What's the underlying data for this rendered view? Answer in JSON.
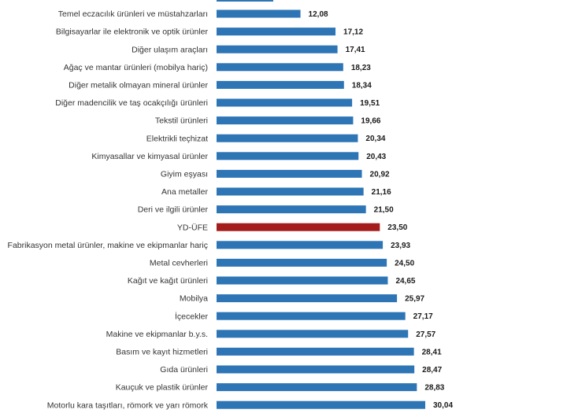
{
  "colors": {
    "bar": "#2e75b6",
    "highlight": "#a51c1c",
    "text": "#333333",
    "value_text": "#1a1a1a"
  },
  "chart_data": {
    "type": "bar",
    "orientation": "horizontal",
    "title": "",
    "xlabel": "",
    "ylabel": "",
    "grid": false,
    "highlight_category": "YD-ÜFE",
    "categories": [
      "Temel eczacılık ürünleri ve müstahzarları",
      "Bilgisayarlar ile elektronik ve optik ürünler",
      "Diğer ulaşım araçları",
      "Ağaç ve mantar ürünleri (mobilya hariç)",
      "Diğer metalik olmayan mineral ürünler",
      "Diğer madencilik ve taş ocakçılığı ürünleri",
      "Tekstil ürünleri",
      "Elektrikli teçhizat",
      "Kimyasallar ve kimyasal ürünler",
      "Giyim eşyası",
      "Ana metaller",
      "Deri ve ilgili ürünler",
      "YD-ÜFE",
      "Fabrikasyon metal ürünler, makine ve ekipmanlar hariç",
      "Metal cevherleri",
      "Kağıt ve kağıt ürünleri",
      "Mobilya",
      "İçecekler",
      "Makine ve ekipmanlar b.y.s.",
      "Basım ve kayıt hizmetleri",
      "Gıda ürünleri",
      "Kauçuk ve plastik ürünler",
      "Motorlu kara taşıtları, römork ve yarı römork"
    ],
    "values": [
      12.08,
      17.12,
      17.41,
      18.23,
      18.34,
      19.51,
      19.66,
      20.34,
      20.43,
      20.92,
      21.16,
      21.5,
      23.5,
      23.93,
      24.5,
      24.65,
      25.97,
      27.17,
      27.57,
      28.41,
      28.47,
      28.83,
      30.04
    ],
    "value_labels": [
      "12,08",
      "17,12",
      "17,41",
      "18,23",
      "18,34",
      "19,51",
      "19,66",
      "20,34",
      "20,43",
      "20,92",
      "21,16",
      "21,50",
      "23,50",
      "23,93",
      "24,50",
      "24,65",
      "25,97",
      "27,17",
      "27,57",
      "28,41",
      "28,47",
      "28,83",
      "30,04"
    ],
    "xlim": [
      0,
      30.04
    ]
  }
}
